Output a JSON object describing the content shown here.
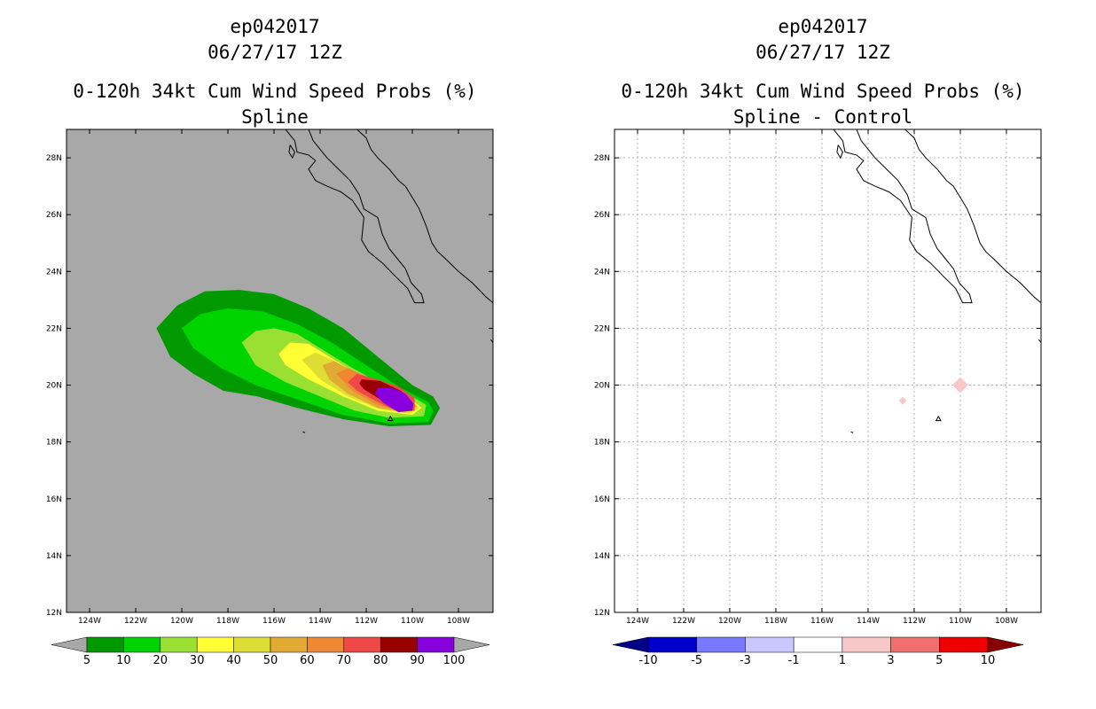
{
  "chart_data": [
    {
      "type": "heatmap",
      "id": "left",
      "storm": "ep042017",
      "datetime": "06/27/17 12Z",
      "title": "0-120h 34kt Cum Wind Speed Probs (%)",
      "subtitle": "Spline",
      "xlim": [
        -125,
        -106.5
      ],
      "ylim": [
        12,
        29
      ],
      "xticks": [
        -124,
        -122,
        -120,
        -118,
        -116,
        -114,
        -112,
        -110,
        -108
      ],
      "xtick_labels": [
        "124W",
        "122W",
        "120W",
        "118W",
        "116W",
        "114W",
        "112W",
        "110W",
        "108W"
      ],
      "yticks": [
        12,
        14,
        16,
        18,
        20,
        22,
        24,
        26,
        28
      ],
      "ytick_labels": [
        "12N",
        "14N",
        "16N",
        "18N",
        "20N",
        "22N",
        "24N",
        "26N",
        "28N"
      ],
      "grid": false,
      "background": "#a8a8a8",
      "contour_levels": [
        {
          "threshold": 5,
          "color": "#009900",
          "polygon": [
            [
              -121.1,
              22
            ],
            [
              -120.2,
              22.8
            ],
            [
              -119,
              23.3
            ],
            [
              -117.5,
              23.35
            ],
            [
              -116,
              23.2
            ],
            [
              -114.5,
              22.7
            ],
            [
              -113,
              22
            ],
            [
              -111.5,
              21
            ],
            [
              -110,
              20
            ],
            [
              -109.1,
              19.6
            ],
            [
              -108.8,
              19.2
            ],
            [
              -109.2,
              18.6
            ],
            [
              -111,
              18.55
            ],
            [
              -113,
              18.8
            ],
            [
              -115,
              19.2
            ],
            [
              -116.7,
              19.6
            ],
            [
              -118.2,
              19.8
            ],
            [
              -119.5,
              20.4
            ],
            [
              -120.5,
              21
            ]
          ]
        },
        {
          "threshold": 10,
          "color": "#00d400",
          "polygon": [
            [
              -120,
              22
            ],
            [
              -119.2,
              22.5
            ],
            [
              -118,
              22.7
            ],
            [
              -116.5,
              22.6
            ],
            [
              -115,
              22.15
            ],
            [
              -113.5,
              21.5
            ],
            [
              -112,
              20.7
            ],
            [
              -110.5,
              19.9
            ],
            [
              -109.3,
              19.4
            ],
            [
              -109.1,
              19.1
            ],
            [
              -109.3,
              18.7
            ],
            [
              -111,
              18.65
            ],
            [
              -113,
              18.95
            ],
            [
              -115,
              19.5
            ],
            [
              -116.8,
              20
            ],
            [
              -118.3,
              20.6
            ],
            [
              -119.5,
              21.3
            ]
          ]
        },
        {
          "threshold": 20,
          "color": "#99e033",
          "polygon": [
            [
              -117.4,
              21.5
            ],
            [
              -116.8,
              21.9
            ],
            [
              -116,
              22
            ],
            [
              -115,
              21.8
            ],
            [
              -114,
              21.3
            ],
            [
              -112.8,
              20.7
            ],
            [
              -111.5,
              20.1
            ],
            [
              -110,
              19.6
            ],
            [
              -109.4,
              19.3
            ],
            [
              -109.5,
              18.9
            ],
            [
              -111,
              18.85
            ],
            [
              -112.5,
              19.1
            ],
            [
              -114,
              19.6
            ],
            [
              -115.5,
              20.1
            ],
            [
              -116.8,
              20.7
            ]
          ]
        },
        {
          "threshold": 30,
          "color": "#ffff33",
          "polygon": [
            [
              -115.8,
              21.1
            ],
            [
              -115.3,
              21.5
            ],
            [
              -114.5,
              21.45
            ],
            [
              -113.8,
              21.1
            ],
            [
              -112.6,
              20.5
            ],
            [
              -111.4,
              20.05
            ],
            [
              -110.2,
              19.6
            ],
            [
              -109.6,
              19.2
            ],
            [
              -110,
              18.95
            ],
            [
              -111.5,
              19.1
            ],
            [
              -113,
              19.6
            ],
            [
              -114.5,
              20.2
            ],
            [
              -115.5,
              20.7
            ]
          ]
        },
        {
          "threshold": 40,
          "color": "#dddd33",
          "polygon": [
            [
              -114.8,
              20.9
            ],
            [
              -114.2,
              21.15
            ],
            [
              -113.5,
              20.9
            ],
            [
              -112.5,
              20.45
            ],
            [
              -111.4,
              20.05
            ],
            [
              -110.3,
              19.6
            ],
            [
              -109.7,
              19.2
            ],
            [
              -110.1,
              19
            ],
            [
              -111.4,
              19.15
            ],
            [
              -112.8,
              19.6
            ],
            [
              -114,
              20.2
            ]
          ]
        },
        {
          "threshold": 50,
          "color": "#e0aa33",
          "polygon": [
            [
              -113.9,
              20.7
            ],
            [
              -113.4,
              20.85
            ],
            [
              -112.7,
              20.55
            ],
            [
              -111.7,
              20.15
            ],
            [
              -110.5,
              19.7
            ],
            [
              -109.8,
              19.25
            ],
            [
              -110.3,
              19.05
            ],
            [
              -111.5,
              19.2
            ],
            [
              -112.8,
              19.7
            ],
            [
              -113.6,
              20.2
            ]
          ]
        },
        {
          "threshold": 60,
          "color": "#ee8833",
          "polygon": [
            [
              -113.3,
              20.4
            ],
            [
              -112.8,
              20.6
            ],
            [
              -112,
              20.3
            ],
            [
              -111,
              19.95
            ],
            [
              -110.2,
              19.6
            ],
            [
              -109.8,
              19.25
            ],
            [
              -110.4,
              19.1
            ],
            [
              -111.5,
              19.3
            ],
            [
              -112.6,
              19.8
            ]
          ]
        },
        {
          "threshold": 70,
          "color": "#f04848",
          "polygon": [
            [
              -112.8,
              20.1
            ],
            [
              -112.4,
              20.4
            ],
            [
              -111.5,
              20.2
            ],
            [
              -110.6,
              19.95
            ],
            [
              -109.9,
              19.55
            ],
            [
              -109.9,
              19.1
            ],
            [
              -110.6,
              19.05
            ],
            [
              -111.5,
              19.4
            ],
            [
              -112.4,
              19.8
            ]
          ]
        },
        {
          "threshold": 80,
          "color": "#990000",
          "polygon": [
            [
              -112.3,
              20.05
            ],
            [
              -112.2,
              20.2
            ],
            [
              -111.4,
              20.15
            ],
            [
              -110.5,
              19.8
            ],
            [
              -110,
              19.4
            ],
            [
              -110,
              19.15
            ],
            [
              -110.6,
              19.15
            ],
            [
              -111.4,
              19.5
            ],
            [
              -112.1,
              19.85
            ]
          ]
        },
        {
          "threshold": 90,
          "color": "#8800dd",
          "polygon": [
            [
              -111.5,
              19.9
            ],
            [
              -110.9,
              19.9
            ],
            [
              -110.3,
              19.7
            ],
            [
              -109.95,
              19.35
            ],
            [
              -110,
              19.1
            ],
            [
              -110.6,
              19.05
            ],
            [
              -111.3,
              19.4
            ],
            [
              -111.6,
              19.7
            ]
          ]
        }
      ],
      "colorbar": {
        "labels": [
          "5",
          "10",
          "20",
          "30",
          "40",
          "50",
          "60",
          "70",
          "80",
          "90",
          "100"
        ],
        "colors": [
          "#009900",
          "#00d400",
          "#99e033",
          "#ffff33",
          "#dddd33",
          "#e0aa33",
          "#ee8833",
          "#f04848",
          "#990000",
          "#8800dd"
        ],
        "under_color": "#a8a8a8",
        "over_color": "#a8a8a8"
      }
    },
    {
      "type": "heatmap",
      "id": "right",
      "storm": "ep042017",
      "datetime": "06/27/17 12Z",
      "title": "0-120h 34kt Cum Wind Speed Probs (%)",
      "subtitle": "Spline - Control",
      "xlim": [
        -125,
        -106.5
      ],
      "ylim": [
        12,
        29
      ],
      "xticks": [
        -124,
        -122,
        -120,
        -118,
        -116,
        -114,
        -112,
        -110,
        -108
      ],
      "xtick_labels": [
        "124W",
        "122W",
        "120W",
        "118W",
        "116W",
        "114W",
        "112W",
        "110W",
        "108W"
      ],
      "yticks": [
        12,
        14,
        16,
        18,
        20,
        22,
        24,
        26,
        28
      ],
      "ytick_labels": [
        "12N",
        "14N",
        "16N",
        "18N",
        "20N",
        "22N",
        "24N",
        "26N",
        "28N"
      ],
      "grid": true,
      "background": "#ffffff",
      "difference_cells": [
        {
          "lon": -110,
          "lat": 20,
          "range": "1 to 3",
          "color": "#f8c8c8"
        },
        {
          "lon": -112.5,
          "lat": 19.45,
          "range": "1 to 3",
          "color": "#f8c8c8"
        }
      ],
      "colorbar": {
        "labels": [
          "-10",
          "-5",
          "-3",
          "-1",
          "1",
          "3",
          "5",
          "10"
        ],
        "colors": [
          "#0000cc",
          "#7777ff",
          "#c8c8ff",
          "#ffffff",
          "#f8c8c8",
          "#f07070",
          "#ee0000"
        ],
        "under_color": "#000088",
        "over_color": "#880000"
      }
    }
  ],
  "coastline": [
    [
      [
        -112.4,
        29
      ],
      [
        -112.0,
        28.7
      ],
      [
        -111.8,
        28.3
      ],
      [
        -111.5,
        28
      ],
      [
        -111,
        27.6
      ],
      [
        -110.6,
        27.2
      ],
      [
        -110.3,
        27
      ],
      [
        -110.0,
        26.6
      ],
      [
        -109.7,
        26.2
      ],
      [
        -109.4,
        25.6
      ],
      [
        -109.15,
        25
      ],
      [
        -108.9,
        24.7
      ],
      [
        -108.5,
        24.4
      ],
      [
        -108.0,
        24
      ],
      [
        -107.4,
        23.6
      ],
      [
        -106.8,
        23.1
      ],
      [
        -106.5,
        22.9
      ]
    ],
    [
      [
        -114.5,
        29
      ],
      [
        -114.3,
        28.6
      ],
      [
        -114.0,
        28.3
      ],
      [
        -113.7,
        28
      ],
      [
        -113.2,
        27.6
      ],
      [
        -112.7,
        27.2
      ],
      [
        -112.3,
        26.7
      ],
      [
        -112.1,
        26.2
      ],
      [
        -111.5,
        25.9
      ],
      [
        -111.3,
        25.3
      ],
      [
        -111.0,
        24.8
      ],
      [
        -110.6,
        24.4
      ],
      [
        -110.3,
        24.1
      ],
      [
        -110.05,
        23.6
      ],
      [
        -109.6,
        23.2
      ],
      [
        -109.5,
        22.9
      ],
      [
        -109.9,
        22.9
      ],
      [
        -110.2,
        23.4
      ],
      [
        -110.7,
        23.8
      ],
      [
        -111.3,
        24.3
      ],
      [
        -111.9,
        24.7
      ],
      [
        -112.2,
        25.1
      ],
      [
        -112.1,
        25.9
      ],
      [
        -112.6,
        26.5
      ],
      [
        -113.1,
        26.8
      ],
      [
        -113.7,
        27.0
      ],
      [
        -114.2,
        27.2
      ],
      [
        -114.5,
        27.6
      ],
      [
        -114.2,
        27.9
      ],
      [
        -114.5,
        28.1
      ],
      [
        -115.0,
        28.2
      ],
      [
        -115.1,
        28.6
      ],
      [
        -115.5,
        29
      ]
    ],
    [
      [
        -115.3,
        28.45
      ],
      [
        -115.1,
        28.2
      ],
      [
        -115.2,
        28.0
      ],
      [
        -115.35,
        28.2
      ],
      [
        -115.3,
        28.45
      ]
    ],
    [
      [
        -110.95,
        18.9
      ],
      [
        -110.85,
        18.75
      ],
      [
        -111.05,
        18.75
      ],
      [
        -110.95,
        18.9
      ]
    ],
    [
      [
        -114.75,
        18.35
      ],
      [
        -114.65,
        18.33
      ]
    ],
    [
      [
        -106.6,
        21.6
      ],
      [
        -106.5,
        21.5
      ]
    ]
  ]
}
